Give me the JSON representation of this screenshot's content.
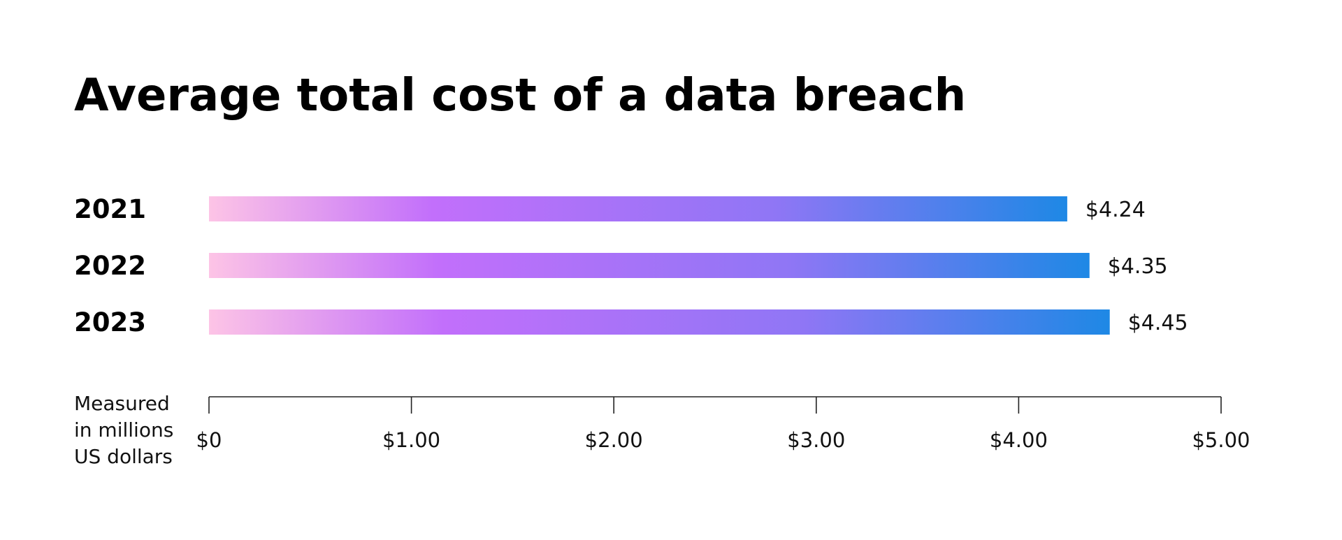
{
  "chart_data": {
    "type": "bar",
    "orientation": "horizontal",
    "title": "Average total cost of a data breach",
    "categories": [
      "2021",
      "2022",
      "2023"
    ],
    "values": [
      4.24,
      4.35,
      4.45
    ],
    "value_labels": [
      "$4.24",
      "$4.35",
      "$4.45"
    ],
    "x_ticks": [
      0,
      1,
      2,
      3,
      4,
      5
    ],
    "x_tick_labels": [
      "$0",
      "$1.00",
      "$2.00",
      "$3.00",
      "$4.00",
      "$5.00"
    ],
    "xlim": [
      0,
      5
    ],
    "xlabel_lines": [
      "Measured",
      "in millions",
      "US dollars"
    ],
    "grid": false,
    "legend": "none",
    "colors": {
      "bar_gradient": [
        "#fdc4e6",
        "#c26ffb",
        "#8f76f5",
        "#1e88e5"
      ],
      "text": "#000000",
      "axis": "#222222"
    }
  }
}
